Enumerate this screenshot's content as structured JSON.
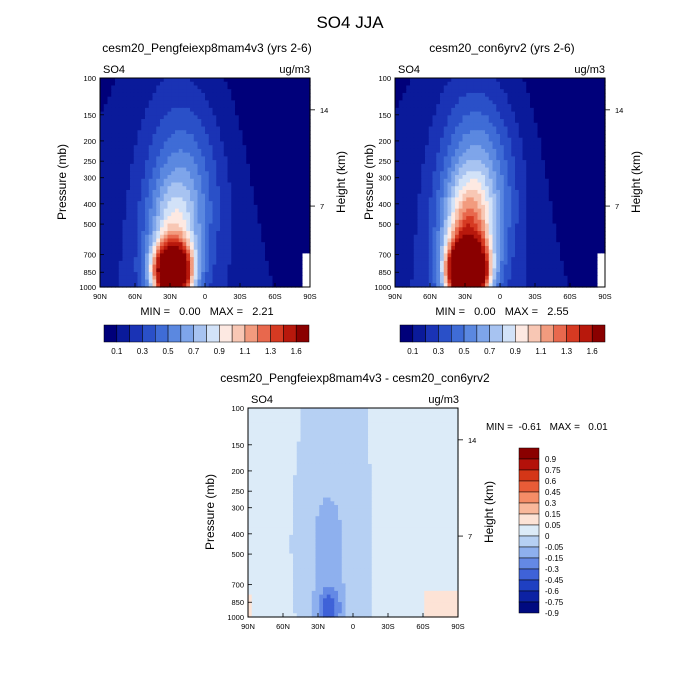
{
  "figure": {
    "title": "SO4 JJA"
  },
  "chart_data": [
    {
      "type": "heatmap",
      "title": "cesm20_Pengfeiexp8mam4v3 (yrs 2-6)",
      "left_label": "SO4",
      "right_label": "ug/m3",
      "ylabel": "Pressure (mb)",
      "ylabel_right": "Height (km)",
      "x_ticks": [
        "90N",
        "60N",
        "30N",
        "0",
        "30S",
        "60S",
        "90S"
      ],
      "x_tick_values": [
        90,
        60,
        30,
        0,
        -30,
        -60,
        -90
      ],
      "y_ticks": [
        "100",
        "150",
        "200",
        "250",
        "300",
        "400",
        "500",
        "700",
        "850",
        "1000"
      ],
      "y_tick_values": [
        100,
        150,
        200,
        250,
        300,
        400,
        500,
        700,
        850,
        1000
      ],
      "y_right_ticks": [
        "14",
        "7"
      ],
      "y_right_tick_pressures": [
        142,
        410
      ],
      "stats": "MIN =   0.00   MAX =   2.21",
      "max": 2.21,
      "colorbar_labels": [
        "0.1",
        "0.3",
        "0.5",
        "0.7",
        "0.9",
        "1.1",
        "1.3",
        "1.6"
      ]
    },
    {
      "type": "heatmap",
      "title": "cesm20_con6yrv2 (yrs 2-6)",
      "left_label": "SO4",
      "right_label": "ug/m3",
      "ylabel": "Pressure (mb)",
      "ylabel_right": "Height (km)",
      "x_ticks": [
        "90N",
        "60N",
        "30N",
        "0",
        "30S",
        "60S",
        "90S"
      ],
      "x_tick_values": [
        90,
        60,
        30,
        0,
        -30,
        -60,
        -90
      ],
      "y_ticks": [
        "100",
        "150",
        "200",
        "250",
        "300",
        "400",
        "500",
        "700",
        "850",
        "1000"
      ],
      "y_tick_values": [
        100,
        150,
        200,
        250,
        300,
        400,
        500,
        700,
        850,
        1000
      ],
      "y_right_ticks": [
        "14",
        "7"
      ],
      "y_right_tick_pressures": [
        142,
        410
      ],
      "stats": "MIN =   0.00   MAX =   2.55",
      "max": 2.55,
      "colorbar_labels": [
        "0.1",
        "0.3",
        "0.5",
        "0.7",
        "0.9",
        "1.1",
        "1.3",
        "1.6"
      ]
    },
    {
      "type": "heatmap",
      "title": "cesm20_Pengfeiexp8mam4v3 - cesm20_con6yrv2",
      "left_label": "SO4",
      "right_label": "ug/m3",
      "ylabel": "Pressure (mb)",
      "ylabel_right": "Height (km)",
      "x_ticks": [
        "90N",
        "60N",
        "30N",
        "0",
        "30S",
        "60S",
        "90S"
      ],
      "x_tick_values": [
        90,
        60,
        30,
        0,
        -30,
        -60,
        -90
      ],
      "y_ticks": [
        "100",
        "150",
        "200",
        "250",
        "300",
        "400",
        "500",
        "700",
        "850",
        "1000"
      ],
      "y_tick_values": [
        100,
        150,
        200,
        250,
        300,
        400,
        500,
        700,
        850,
        1000
      ],
      "y_right_ticks": [
        "14",
        "7"
      ],
      "y_right_tick_pressures": [
        142,
        410
      ],
      "stats": "MIN =  -0.61   MAX =   0.01",
      "min": -0.61,
      "max": 0.01,
      "colorbar_labels": [
        "0.9",
        "0.75",
        "0.6",
        "0.45",
        "0.3",
        "0.15",
        "0.05",
        "0",
        "-0.05",
        "-0.15",
        "-0.3",
        "-0.45",
        "-0.6",
        "-0.75",
        "-0.9"
      ]
    }
  ],
  "colors": {
    "seq": [
      "#00007a",
      "#0a1a9a",
      "#1a33b5",
      "#2a50c8",
      "#3f6cd6",
      "#5b88e0",
      "#7ea5ea",
      "#a7c3f1",
      "#d2e2f8",
      "#fde9e2",
      "#f8c7b4",
      "#f29b7e",
      "#e8684d",
      "#d63a22",
      "#b8180c",
      "#8a0000"
    ],
    "div": [
      "#8a0000",
      "#b3110a",
      "#d43617",
      "#e85c37",
      "#f58d67",
      "#f9b89b",
      "#fde3d6",
      "#dcebf8",
      "#b6d0f3",
      "#8eb0ee",
      "#6489e5",
      "#3f62d8",
      "#1f40c2",
      "#0c22a3",
      "#000a80"
    ]
  }
}
